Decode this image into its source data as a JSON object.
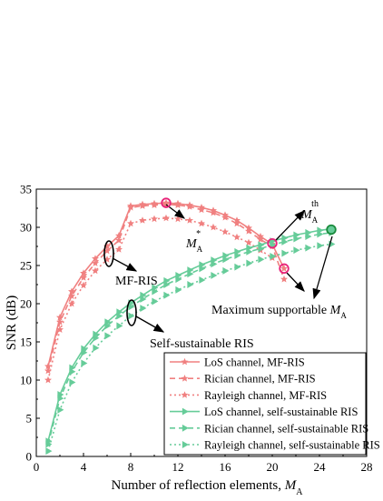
{
  "chart_data": {
    "type": "line",
    "title": "",
    "xlabel": "Number of reflection elements, ",
    "xlabel_symbol": "M",
    "xlabel_sub": "A",
    "ylabel": "SNR (dB)",
    "xlim": [
      0,
      28
    ],
    "ylim": [
      0,
      35
    ],
    "xticks": [
      "0",
      "4",
      "8",
      "12",
      "16",
      "20",
      "24",
      "28"
    ],
    "yticks": [
      "0",
      "5",
      "10",
      "15",
      "20",
      "25",
      "30",
      "35"
    ],
    "grid": false,
    "legend_position": "bottom-right",
    "colors": {
      "mf": "#f08080",
      "ss": "#66cc99",
      "circle_mf": "#e8237a",
      "circle_ss": "#1a8a3c"
    },
    "series": [
      {
        "name": "LoS channel, MF-RIS",
        "group": "mf",
        "style": "solid",
        "marker": "star",
        "x": [
          1,
          2,
          3,
          4,
          5,
          6,
          7,
          8,
          9,
          10,
          11,
          12,
          13,
          14,
          15,
          16,
          17,
          18,
          19,
          20,
          21
        ],
        "y": [
          11.8,
          18.2,
          21.6,
          24.0,
          25.9,
          27.5,
          28.9,
          32.8,
          33.0,
          33.1,
          33.2,
          33.1,
          32.9,
          32.6,
          32.2,
          31.6,
          30.9,
          29.9,
          28.8,
          27.8,
          24.6
        ]
      },
      {
        "name": "Rician channel, MF-RIS",
        "group": "mf",
        "style": "dashed",
        "marker": "star",
        "x": [
          1,
          2,
          3,
          4,
          5,
          6,
          7,
          8,
          9,
          10,
          11,
          12,
          13,
          14,
          15,
          16,
          17,
          18,
          19,
          20,
          21
        ],
        "y": [
          11.2,
          17.6,
          21.0,
          23.4,
          25.3,
          26.9,
          28.3,
          32.6,
          32.8,
          32.9,
          33.0,
          32.9,
          32.7,
          32.3,
          31.9,
          31.3,
          30.5,
          29.5,
          28.4,
          27.5,
          23.2
        ]
      },
      {
        "name": "Rayleigh channel, MF-RIS",
        "group": "mf",
        "style": "dotted",
        "marker": "star",
        "x": [
          1,
          2,
          3,
          4,
          5,
          6,
          7,
          8,
          9,
          10,
          11,
          12,
          13,
          14,
          15,
          16,
          17,
          18,
          19,
          20
        ],
        "y": [
          10.0,
          16.6,
          20.0,
          22.4,
          24.3,
          25.8,
          27.1,
          30.5,
          30.9,
          31.1,
          31.2,
          31.1,
          30.9,
          30.5,
          30.0,
          29.4,
          28.7,
          28.0,
          27.0,
          26.0
        ]
      },
      {
        "name": "LoS channel, self-sustainable RIS",
        "group": "ss",
        "style": "solid",
        "marker": "triangle",
        "x": [
          1,
          2,
          3,
          4,
          5,
          6,
          7,
          8,
          9,
          10,
          11,
          12,
          13,
          14,
          15,
          16,
          17,
          18,
          19,
          20,
          21,
          22,
          23,
          24,
          25
        ],
        "y": [
          2.0,
          8.1,
          11.6,
          14.1,
          16.0,
          17.6,
          18.9,
          20.1,
          21.1,
          22.1,
          23.0,
          23.7,
          24.4,
          25.1,
          25.7,
          26.3,
          26.8,
          27.3,
          27.7,
          28.2,
          28.6,
          29.0,
          29.3,
          29.6,
          29.8
        ]
      },
      {
        "name": "Rician channel, self-sustainable RIS",
        "group": "ss",
        "style": "dashed",
        "marker": "triangle",
        "x": [
          1,
          2,
          3,
          4,
          5,
          6,
          7,
          8,
          9,
          10,
          11,
          12,
          13,
          14,
          15,
          16,
          17,
          18,
          19,
          20,
          21,
          22,
          23,
          24,
          25
        ],
        "y": [
          1.6,
          7.6,
          11.1,
          13.6,
          15.5,
          17.1,
          18.4,
          19.6,
          20.6,
          21.6,
          22.5,
          23.2,
          23.9,
          24.6,
          25.2,
          25.8,
          26.3,
          26.8,
          27.2,
          27.7,
          28.1,
          28.5,
          28.8,
          29.1,
          29.3
        ]
      },
      {
        "name": "Rayleigh channel, self-sustainable RIS",
        "group": "ss",
        "style": "dotted",
        "marker": "triangle",
        "x": [
          1,
          2,
          3,
          4,
          5,
          6,
          7,
          8,
          9,
          10,
          11,
          12,
          13,
          14,
          15,
          16,
          17,
          18,
          19,
          20,
          21,
          22,
          23,
          24,
          25
        ],
        "y": [
          0.7,
          6.1,
          9.7,
          12.2,
          14.2,
          15.8,
          17.1,
          18.4,
          19.4,
          20.3,
          21.1,
          21.8,
          22.5,
          23.1,
          23.7,
          24.3,
          24.8,
          25.3,
          25.8,
          26.2,
          26.6,
          27.0,
          27.3,
          27.6,
          27.8
        ]
      }
    ],
    "highlight_points": [
      {
        "x": 11,
        "y": 33.2,
        "group": "mf"
      },
      {
        "x": 20,
        "y": 27.9,
        "group": "mf"
      },
      {
        "x": 21,
        "y": 24.6,
        "group": "mf"
      },
      {
        "x": 25,
        "y": 29.7,
        "group": "ss"
      }
    ],
    "annotations": {
      "mf_ris": "MF-RIS",
      "self_sustainable": "Self-sustainable RIS",
      "ma_star_symbol": "M",
      "ma_star_sub": "A",
      "ma_star_sup": "*",
      "ma_th_symbol": "M",
      "ma_th_sub": "A",
      "ma_th_sup": "th",
      "max_supportable": "Maximum supportable ",
      "max_symbol": "M",
      "max_sub": "A"
    }
  }
}
